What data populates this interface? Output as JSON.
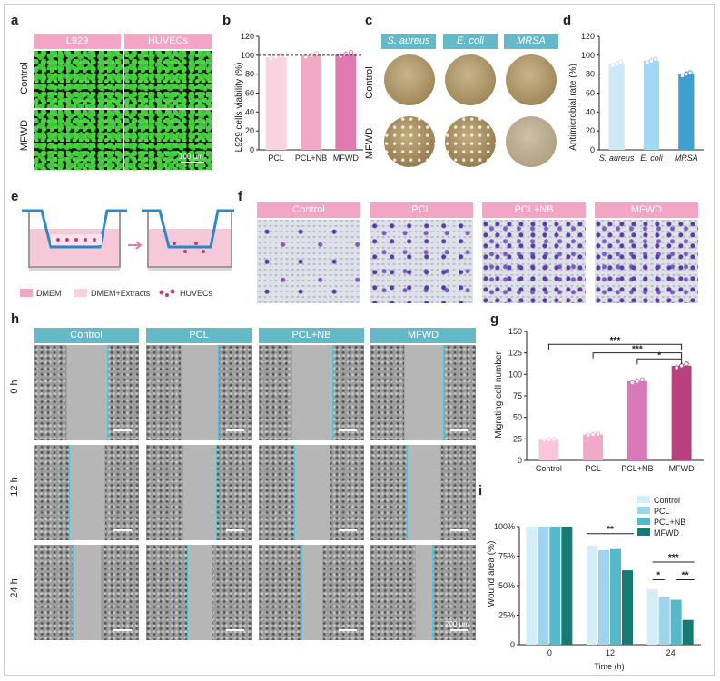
{
  "panel_letters": {
    "a": "a",
    "b": "b",
    "c": "c",
    "d": "d",
    "e": "e",
    "f": "f",
    "g": "g",
    "h": "h",
    "i": "i"
  },
  "panel_a": {
    "cols": [
      "L929",
      "HUVECs"
    ],
    "rows": [
      "Control",
      "MFWD"
    ],
    "scale": "100 μm"
  },
  "panel_c": {
    "cols": [
      "S. aureus",
      "E. coli",
      "MRSA"
    ],
    "rows": [
      "Control",
      "MFWD"
    ]
  },
  "panel_e": {
    "legend": [
      "DMEM",
      "DMEM+Extracts",
      "HUVECs"
    ]
  },
  "panel_f": {
    "cols": [
      "Control",
      "PCL",
      "PCL+NB",
      "MFWD"
    ]
  },
  "panel_h": {
    "cols": [
      "Control",
      "PCL",
      "PCL+NB",
      "MFWD"
    ],
    "rows": [
      "0 h",
      "12 h",
      "24 h"
    ],
    "scale": "200 μm"
  },
  "colors": {
    "pink": "#f2a6c3",
    "teal": "#64b9c9",
    "c_pink1": "#fbd3e0",
    "c_pink2": "#f2a9c6",
    "c_pink3": "#e07bb2",
    "c_blue1": "#cfe8f6",
    "c_blue2": "#a3d8f2",
    "c_blue3": "#3f9fd1",
    "g_pink1": "#f8c7da",
    "g_pink2": "#f1a9c8",
    "g_pink3": "#d979b8",
    "g_pink4": "#b8407e",
    "i_1": "#d5ecf9",
    "i_2": "#9fd4ef",
    "i_3": "#55b9c9",
    "i_4": "#187b73"
  },
  "chart_data": [
    {
      "panel": "b",
      "type": "bar",
      "categories": [
        "PCL",
        "PCL+NB",
        "MFWD"
      ],
      "values": [
        98,
        100,
        101
      ],
      "ylabel": "L929 cells viability (%)",
      "ylim": [
        0,
        120
      ],
      "yticks": [
        0,
        20,
        40,
        60,
        80,
        100,
        120
      ],
      "reference_line": 100
    },
    {
      "panel": "d",
      "type": "bar",
      "categories": [
        "S. aureus",
        "E. coli",
        "MRSA"
      ],
      "values": [
        91,
        94,
        80
      ],
      "ylabel": "Antimicrobial rate (%)",
      "ylim": [
        0,
        120
      ],
      "yticks": [
        0,
        20,
        40,
        60,
        80,
        100,
        120
      ]
    },
    {
      "panel": "g",
      "type": "bar",
      "categories": [
        "Control",
        "PCL",
        "PCL+NB",
        "MFWD"
      ],
      "values": [
        24,
        30,
        92,
        110
      ],
      "ylabel": "Migrating cell number",
      "ylim": [
        0,
        150
      ],
      "yticks": [
        0,
        25,
        50,
        75,
        100,
        125,
        150
      ],
      "significance": [
        "***",
        "***",
        "*"
      ]
    },
    {
      "panel": "i",
      "type": "bar",
      "categories": [
        "0",
        "12",
        "24"
      ],
      "xlabel": "Time (h)",
      "ylabel": "Wound area (%)",
      "ylim": [
        0,
        100
      ],
      "yticks": [
        "0",
        "25%",
        "50%",
        "75%",
        "100%"
      ],
      "series": [
        {
          "name": "Control",
          "values": [
            100,
            84,
            47
          ]
        },
        {
          "name": "PCL",
          "values": [
            100,
            80,
            40
          ]
        },
        {
          "name": "PCL+NB",
          "values": [
            100,
            81,
            38
          ]
        },
        {
          "name": "MFWD",
          "values": [
            100,
            63,
            21
          ]
        }
      ],
      "significance": [
        "**",
        "*",
        "***",
        "**"
      ],
      "legend_position": "top-right"
    }
  ]
}
